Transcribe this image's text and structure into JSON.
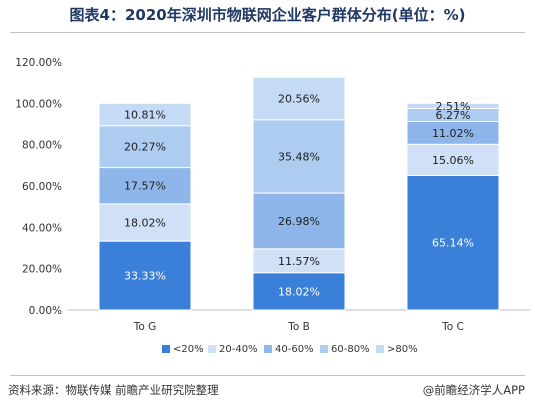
{
  "title": "图表4：2020年深圳市物联网企业客户群体分布(单位：%)",
  "source": "资料来源：物联传媒 前瞻产业研究院整理",
  "brand": "@前瞻经济学人APP",
  "chart_data": {
    "type": "bar",
    "stacked": true,
    "categories": [
      "To G",
      "To B",
      "To C"
    ],
    "series": [
      {
        "name": "<20%",
        "color": "#3a7fd8",
        "values": [
          33.33,
          18.02,
          65.14
        ]
      },
      {
        "name": "20-40%",
        "color": "#cfe0f7",
        "values": [
          18.02,
          11.57,
          15.06
        ]
      },
      {
        "name": "40-60%",
        "color": "#8fb6ea",
        "values": [
          17.57,
          26.98,
          11.02
        ]
      },
      {
        "name": "60-80%",
        "color": "#aecbf0",
        "values": [
          20.27,
          35.48,
          6.27
        ]
      },
      {
        "name": ">80%",
        "color": "#c4daf5",
        "values": [
          10.81,
          20.56,
          2.51
        ]
      }
    ],
    "data_labels": [
      [
        "33.33%",
        "18.02%",
        "65.14%"
      ],
      [
        "18.02%",
        "11.57%",
        "15.06%"
      ],
      [
        "17.57%",
        "26.98%",
        "11.02%"
      ],
      [
        "20.27%",
        "35.48%",
        "6.27%"
      ],
      [
        "10.81%",
        "20.56%",
        "2.51%"
      ]
    ],
    "y_ticks": [
      "0.00%",
      "20.00%",
      "40.00%",
      "60.00%",
      "80.00%",
      "100.00%",
      "120.00%"
    ],
    "ylim": [
      0,
      120
    ],
    "grid": false,
    "legend": "bottom-center"
  }
}
